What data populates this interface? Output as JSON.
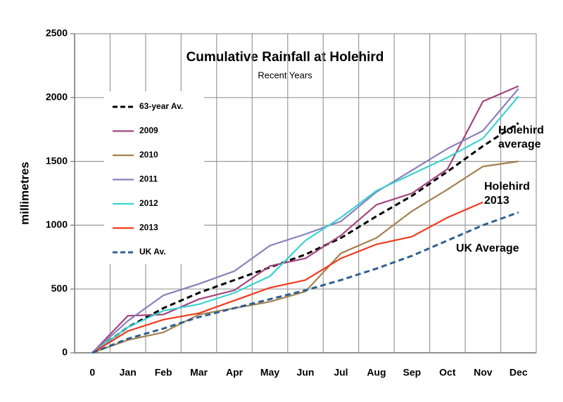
{
  "chart_data": {
    "type": "line",
    "title": "Cumulative Rainfall at Holehird",
    "subtitle": "Recent Years",
    "y_label": "millimetres",
    "categories": [
      "0",
      "Jan",
      "Feb",
      "Mar",
      "Apr",
      "May",
      "Jun",
      "Jul",
      "Aug",
      "Sep",
      "Oct",
      "Nov",
      "Dec"
    ],
    "ylim": [
      0,
      2500
    ],
    "yticks": [
      0,
      500,
      1000,
      1500,
      2000,
      2500
    ],
    "grid": true,
    "legend": "upper left",
    "series": [
      {
        "name": "63-year Av.",
        "color": "#000000",
        "dashed": true,
        "values": [
          0,
          200,
          350,
          470,
          570,
          670,
          770,
          900,
          1070,
          1230,
          1420,
          1620,
          1800
        ]
      },
      {
        "name": "2009",
        "color": "#a3447f",
        "dashed": false,
        "values": [
          0,
          290,
          300,
          420,
          490,
          680,
          740,
          920,
          1160,
          1250,
          1440,
          1970,
          2090
        ]
      },
      {
        "name": "2010",
        "color": "#a3814f",
        "dashed": false,
        "values": [
          0,
          100,
          160,
          300,
          350,
          400,
          480,
          780,
          900,
          1110,
          1280,
          1460,
          1500
        ]
      },
      {
        "name": "2011",
        "color": "#8a7fbb",
        "dashed": false,
        "values": [
          0,
          250,
          450,
          540,
          640,
          840,
          930,
          1030,
          1260,
          1430,
          1600,
          1740,
          2070
        ]
      },
      {
        "name": "2012",
        "color": "#3ad2d2",
        "dashed": false,
        "values": [
          0,
          200,
          330,
          380,
          470,
          600,
          880,
          1060,
          1270,
          1400,
          1530,
          1680,
          2010
        ]
      },
      {
        "name": "2013",
        "color": "#f03a1e",
        "dashed": false,
        "values": [
          0,
          170,
          260,
          310,
          410,
          510,
          570,
          740,
          850,
          910,
          1060,
          1180,
          null
        ]
      },
      {
        "name": "UK Av.",
        "color": "#2e5f91",
        "dashed": true,
        "values": [
          0,
          110,
          190,
          280,
          350,
          420,
          490,
          570,
          660,
          760,
          880,
          1000,
          1100
        ]
      }
    ],
    "annotations": [
      {
        "lines": [
          "Holehird",
          "average"
        ]
      },
      {
        "lines": [
          "Holehird",
          "2013"
        ]
      },
      {
        "lines": [
          "UK Average"
        ]
      }
    ]
  }
}
